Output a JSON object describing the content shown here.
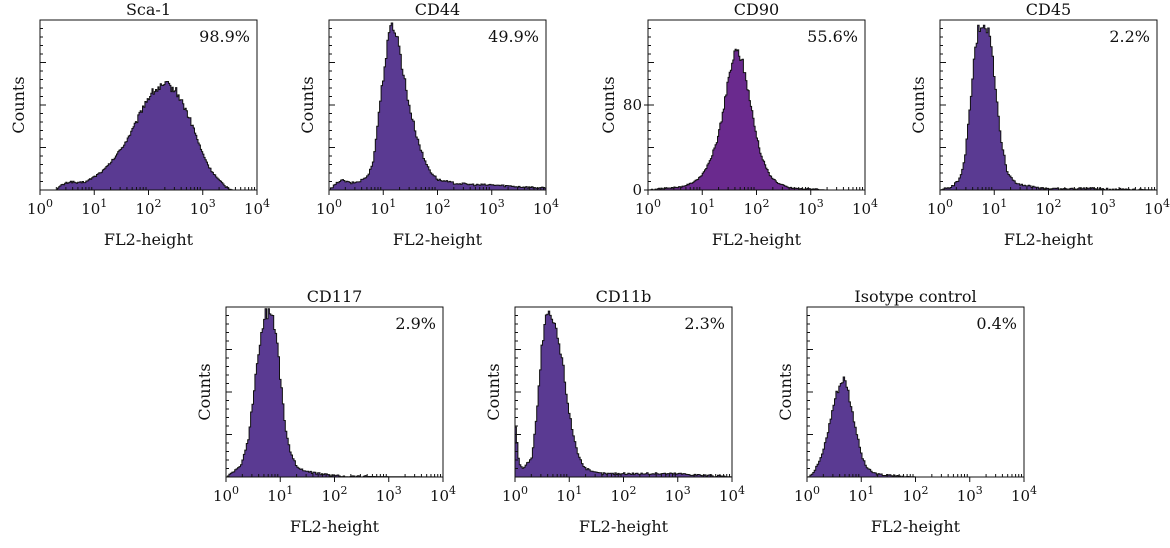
{
  "figure": {
    "panel_count": 7
  },
  "chart_data": [
    {
      "type": "area",
      "title": "Sca-1",
      "annotation": "98.9%",
      "xlabel": "FL2-height",
      "ylabel": "Counts",
      "x_scale": "log",
      "xlim": [
        1,
        10000
      ],
      "x_ticks": [
        {
          "base": "10",
          "exp": "0"
        },
        {
          "base": "10",
          "exp": "1"
        },
        {
          "base": "10",
          "exp": "2"
        },
        {
          "base": "10",
          "exp": "3"
        },
        {
          "base": "10",
          "exp": "4"
        }
      ],
      "y_ticks": [],
      "ylim": [
        0,
        100
      ],
      "fill_color": "#5a3a92",
      "x": [
        1.9,
        2.5,
        3.5,
        5,
        7,
        10,
        15,
        22,
        35,
        55,
        80,
        110,
        150,
        220,
        320,
        450,
        650,
        900,
        1300,
        1900,
        2600,
        3500
      ],
      "y": [
        0,
        3,
        5,
        4,
        5,
        8,
        12,
        18,
        27,
        38,
        50,
        57,
        60,
        62,
        58,
        49,
        37,
        24,
        13,
        6,
        2,
        0
      ]
    },
    {
      "type": "area",
      "title": "CD44",
      "annotation": "49.9%",
      "xlabel": "FL2-height",
      "ylabel": "Counts",
      "x_scale": "log",
      "xlim": [
        1,
        10000
      ],
      "x_ticks": [
        {
          "base": "10",
          "exp": "0"
        },
        {
          "base": "10",
          "exp": "1"
        },
        {
          "base": "10",
          "exp": "2"
        },
        {
          "base": "10",
          "exp": "3"
        },
        {
          "base": "10",
          "exp": "4"
        }
      ],
      "y_ticks": [],
      "ylim": [
        0,
        100
      ],
      "fill_color": "#5a3a92",
      "x": [
        1,
        1.6,
        2.5,
        3.5,
        5,
        6.5,
        8,
        10,
        12,
        14,
        16,
        19,
        23,
        30,
        40,
        55,
        75,
        100,
        200,
        500,
        1000,
        3000,
        10000
      ],
      "y": [
        0,
        6,
        4,
        5,
        8,
        18,
        45,
        70,
        88,
        98,
        95,
        85,
        68,
        48,
        32,
        18,
        10,
        6,
        4,
        3,
        3,
        2,
        1
      ]
    },
    {
      "type": "area",
      "title": "CD90",
      "annotation": "55.6%",
      "xlabel": "FL2-height",
      "ylabel": "Counts",
      "x_scale": "log",
      "xlim": [
        1,
        10000
      ],
      "x_ticks": [
        {
          "base": "10",
          "exp": "0"
        },
        {
          "base": "10",
          "exp": "1"
        },
        {
          "base": "10",
          "exp": "2"
        },
        {
          "base": "10",
          "exp": "3"
        },
        {
          "base": "10",
          "exp": "4"
        }
      ],
      "y_ticks": [
        "0",
        "80"
      ],
      "ylim": [
        0,
        160
      ],
      "fill_color": "#6a2a8e",
      "x": [
        1,
        1.5,
        2.5,
        4,
        6,
        9,
        13,
        18,
        24,
        30,
        38,
        46,
        55,
        70,
        90,
        120,
        170,
        250,
        400,
        700,
        1200,
        1800
      ],
      "y": [
        0,
        1,
        2,
        3,
        6,
        12,
        25,
        45,
        75,
        105,
        128,
        130,
        118,
        92,
        60,
        32,
        14,
        6,
        2,
        1,
        1,
        0
      ]
    },
    {
      "type": "area",
      "title": "CD45",
      "annotation": "2.2%",
      "xlabel": "FL2-height",
      "ylabel": "Counts",
      "x_scale": "log",
      "xlim": [
        1,
        10000
      ],
      "x_ticks": [
        {
          "base": "10",
          "exp": "0"
        },
        {
          "base": "10",
          "exp": "1"
        },
        {
          "base": "10",
          "exp": "2"
        },
        {
          "base": "10",
          "exp": "3"
        },
        {
          "base": "10",
          "exp": "4"
        }
      ],
      "y_ticks": [],
      "ylim": [
        0,
        100
      ],
      "fill_color": "#5a3a92",
      "x": [
        1,
        1.6,
        2.2,
        2.8,
        3.5,
        4.3,
        5,
        6,
        7,
        8.5,
        10,
        13,
        17,
        25,
        45,
        80,
        200,
        500,
        1000,
        3000,
        10000
      ],
      "y": [
        0,
        2,
        6,
        18,
        50,
        82,
        95,
        98,
        96,
        88,
        62,
        30,
        10,
        4,
        2,
        1,
        0.5,
        1,
        0.5,
        0.5,
        0
      ]
    },
    {
      "type": "area",
      "title": "CD117",
      "annotation": "2.9%",
      "xlabel": "FL2-height",
      "ylabel": "Counts",
      "x_scale": "log",
      "xlim": [
        1,
        10000
      ],
      "x_ticks": [
        {
          "base": "10",
          "exp": "0"
        },
        {
          "base": "10",
          "exp": "1"
        },
        {
          "base": "10",
          "exp": "2"
        },
        {
          "base": "10",
          "exp": "3"
        },
        {
          "base": "10",
          "exp": "4"
        }
      ],
      "y_ticks": [],
      "ylim": [
        0,
        100
      ],
      "fill_color": "#5a3a92",
      "x": [
        1,
        1.3,
        1.8,
        2.5,
        3.3,
        4.2,
        5,
        6,
        7,
        8.5,
        10,
        12,
        15,
        20,
        30,
        50,
        80,
        150,
        400,
        1000,
        10000
      ],
      "y": [
        0,
        3,
        6,
        22,
        55,
        82,
        95,
        98,
        96,
        80,
        55,
        30,
        14,
        6,
        3,
        2,
        1,
        0.5,
        0.3,
        0.2,
        0
      ]
    },
    {
      "type": "area",
      "title": "CD11b",
      "annotation": "2.3%",
      "xlabel": "FL2-height",
      "ylabel": "Counts",
      "x_scale": "log",
      "xlim": [
        1,
        10000
      ],
      "x_ticks": [
        {
          "base": "10",
          "exp": "0"
        },
        {
          "base": "10",
          "exp": "1"
        },
        {
          "base": "10",
          "exp": "2"
        },
        {
          "base": "10",
          "exp": "3"
        },
        {
          "base": "10",
          "exp": "4"
        }
      ],
      "y_ticks": [],
      "ylim": [
        0,
        100
      ],
      "fill_color": "#5a3a92",
      "x": [
        1,
        1.15,
        1.4,
        2,
        2.5,
        3,
        3.6,
        4.3,
        5,
        6,
        7.5,
        9,
        11,
        14,
        18,
        25,
        40,
        70,
        150,
        400,
        1000,
        3000,
        10000
      ],
      "y": [
        30,
        8,
        5,
        12,
        40,
        75,
        92,
        96,
        90,
        82,
        65,
        45,
        28,
        14,
        6,
        3,
        2,
        2,
        2,
        2,
        2,
        1,
        0
      ]
    },
    {
      "type": "area",
      "title": "Isotype control",
      "annotation": "0.4%",
      "xlabel": "FL2-height",
      "ylabel": "Counts",
      "x_scale": "log",
      "xlim": [
        1,
        10000
      ],
      "x_ticks": [
        {
          "base": "10",
          "exp": "0"
        },
        {
          "base": "10",
          "exp": "1"
        },
        {
          "base": "10",
          "exp": "2"
        },
        {
          "base": "10",
          "exp": "3"
        },
        {
          "base": "10",
          "exp": "4"
        }
      ],
      "y_ticks": [],
      "ylim": [
        0,
        100
      ],
      "fill_color": "#5a3a92",
      "x": [
        1,
        1.3,
        1.8,
        2.3,
        2.8,
        3.3,
        4,
        4.6,
        5.3,
        6,
        7,
        8.5,
        10,
        12,
        15,
        20,
        30,
        50,
        100,
        10000
      ],
      "y": [
        0,
        3,
        12,
        25,
        38,
        48,
        55,
        58,
        54,
        45,
        35,
        22,
        12,
        6,
        3,
        1.5,
        1,
        0.5,
        0,
        0
      ]
    }
  ]
}
